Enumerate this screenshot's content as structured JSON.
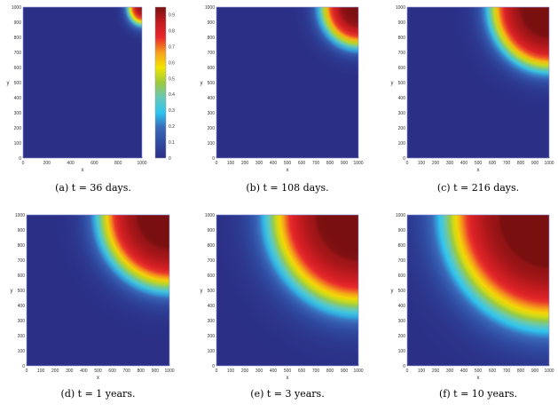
{
  "colormap": [
    "#2b2f86",
    "#2f4aa0",
    "#3a68b8",
    "#2ec4f0",
    "#66c8b8",
    "#9cca3c",
    "#f2e500",
    "#f6a01c",
    "#e8262b",
    "#c21b1f",
    "#7a0f10"
  ],
  "chart_data": [
    {
      "type": "heatmap",
      "id": "a",
      "caption": "(a) t = 36 days.",
      "xlabel": "x",
      "ylabel": "y",
      "xlim": [
        0,
        1000
      ],
      "ylim": [
        0,
        1000
      ],
      "xticks": [
        "0",
        "200",
        "400",
        "600",
        "800",
        "1000"
      ],
      "yticks": [
        "0",
        "100",
        "200",
        "300",
        "400",
        "500",
        "600",
        "700",
        "800",
        "900",
        "1000"
      ],
      "source_corner": "top-right",
      "front_radius": 110,
      "front_width": 25,
      "max_value": 0.95,
      "colorbar": {
        "ticks": [
          "0",
          "0.1",
          "0.2",
          "0.3",
          "0.4",
          "0.5",
          "0.6",
          "0.7",
          "0.8",
          "0.9"
        ],
        "range": [
          0,
          0.95
        ]
      }
    },
    {
      "type": "heatmap",
      "id": "b",
      "caption": "(b) t = 108 days.",
      "xlabel": "x",
      "ylabel": "y",
      "xlim": [
        0,
        1000
      ],
      "ylim": [
        0,
        1000
      ],
      "xticks": [
        "0",
        "100",
        "200",
        "300",
        "400",
        "500",
        "600",
        "700",
        "800",
        "900",
        "1000"
      ],
      "yticks": [
        "0",
        "100",
        "200",
        "300",
        "400",
        "500",
        "600",
        "700",
        "800",
        "900",
        "1000"
      ],
      "source_corner": "top-right",
      "front_radius": 250,
      "front_width": 40,
      "max_value": 0.97
    },
    {
      "type": "heatmap",
      "id": "c",
      "caption": "(c) t = 216 days.",
      "xlabel": "x",
      "ylabel": "y",
      "xlim": [
        0,
        1000
      ],
      "ylim": [
        0,
        1000
      ],
      "xticks": [
        "0",
        "100",
        "200",
        "300",
        "400",
        "500",
        "600",
        "700",
        "800",
        "900",
        "1000"
      ],
      "yticks": [
        "0",
        "100",
        "200",
        "300",
        "400",
        "500",
        "600",
        "700",
        "800",
        "900",
        "1000"
      ],
      "source_corner": "top-right",
      "front_radius": 400,
      "front_width": 50,
      "max_value": 0.98
    },
    {
      "type": "heatmap",
      "id": "d",
      "caption": "(d) t = 1 years.",
      "xlabel": "x",
      "ylabel": "y",
      "xlim": [
        0,
        1000
      ],
      "ylim": [
        0,
        1000
      ],
      "xticks": [
        "0",
        "100",
        "200",
        "300",
        "400",
        "500",
        "600",
        "700",
        "800",
        "900",
        "1000"
      ],
      "yticks": [
        "0",
        "100",
        "200",
        "300",
        "400",
        "500",
        "600",
        "700",
        "800",
        "900",
        "1000"
      ],
      "source_corner": "top-right",
      "front_radius": 470,
      "front_width": 60,
      "max_value": 0.98
    },
    {
      "type": "heatmap",
      "id": "e",
      "caption": "(e) t = 3 years.",
      "xlabel": "x",
      "ylabel": "y",
      "xlim": [
        0,
        1000
      ],
      "ylim": [
        0,
        1000
      ],
      "xticks": [
        "0",
        "100",
        "200",
        "300",
        "400",
        "500",
        "600",
        "700",
        "800",
        "900",
        "1000"
      ],
      "yticks": [
        "0",
        "100",
        "200",
        "300",
        "400",
        "500",
        "600",
        "700",
        "800",
        "900",
        "1000"
      ],
      "source_corner": "top-right",
      "front_radius": 600,
      "front_width": 80,
      "max_value": 0.98
    },
    {
      "type": "heatmap",
      "id": "f",
      "caption": "(f) t = 10 years.",
      "xlabel": "x",
      "ylabel": "y",
      "xlim": [
        0,
        1000
      ],
      "ylim": [
        0,
        1000
      ],
      "xticks": [
        "0",
        "100",
        "200",
        "300",
        "400",
        "500",
        "600",
        "700",
        "800",
        "900",
        "1000"
      ],
      "yticks": [
        "0",
        "100",
        "200",
        "300",
        "400",
        "500",
        "600",
        "700",
        "800",
        "900",
        "1000"
      ],
      "source_corner": "top-right",
      "front_radius": 700,
      "front_width": 90,
      "max_value": 0.99
    }
  ]
}
